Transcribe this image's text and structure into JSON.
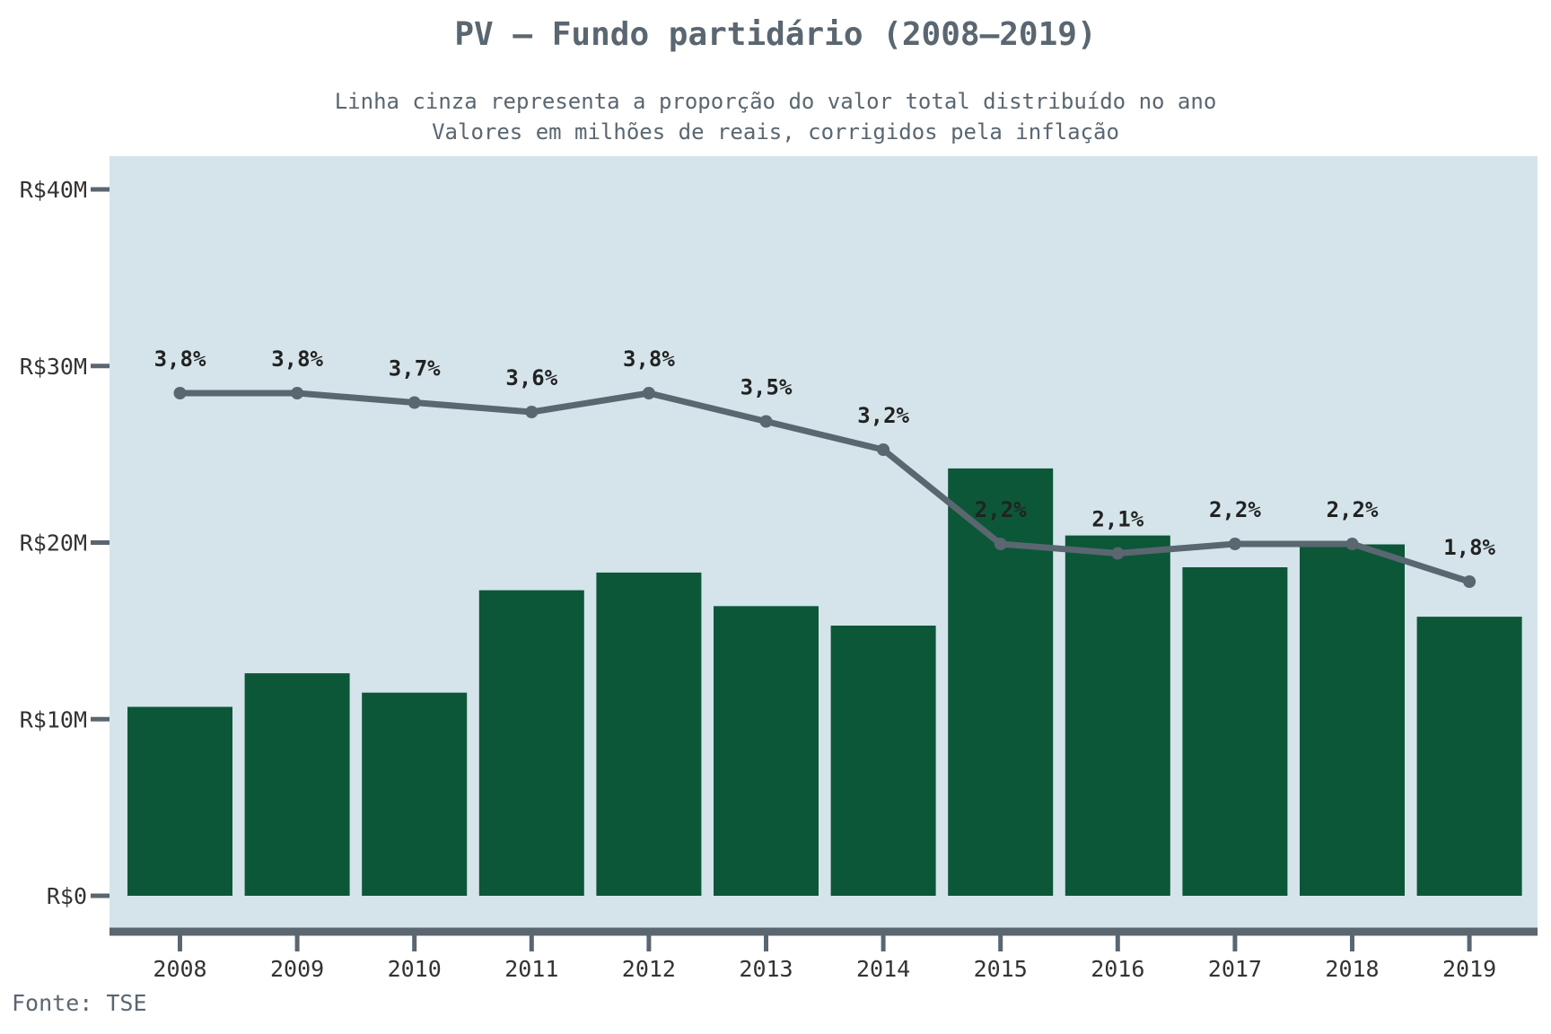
{
  "chart_data": {
    "type": "bar",
    "title": "PV – Fundo partidário (2008–2019)",
    "subtitle_lines": [
      "Linha cinza representa a proporção do valor total distribuído no ano",
      "Valores em milhões de reais, corrigidos pela inflação"
    ],
    "source": "Fonte: TSE",
    "categories": [
      "2008",
      "2009",
      "2010",
      "2011",
      "2012",
      "2013",
      "2014",
      "2015",
      "2016",
      "2017",
      "2018",
      "2019"
    ],
    "series": [
      {
        "values": [
          10.7,
          12.6,
          11.5,
          17.3,
          18.3,
          16.4,
          15.3,
          24.2,
          20.4,
          18.6,
          19.9,
          15.8
        ]
      },
      {
        "values_pct": [
          3.8,
          3.8,
          3.7,
          3.6,
          3.8,
          3.5,
          3.2,
          2.2,
          2.1,
          2.2,
          2.2,
          1.8
        ],
        "labels": [
          "3,8%",
          "3,8%",
          "3,7%",
          "3,6%",
          "3,8%",
          "3,5%",
          "3,2%",
          "2,2%",
          "2,1%",
          "2,2%",
          "2,2%",
          "1,8%"
        ]
      }
    ],
    "ylim": [
      0,
      40
    ],
    "yticks": [
      0,
      10,
      20,
      30,
      40
    ],
    "ytick_labels": [
      "R$0",
      "R$10M",
      "R$20M",
      "R$30M",
      "R$40M"
    ],
    "grid": false,
    "colors": {
      "bars": "#0c5738",
      "line": "#5a6670",
      "plot_background": "#d4e4ea",
      "axis": "#5a6670"
    }
  }
}
